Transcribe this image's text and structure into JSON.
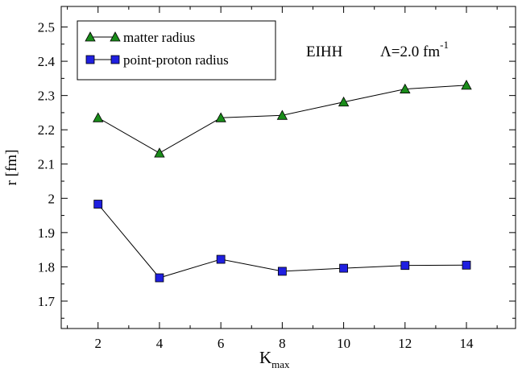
{
  "chart_data": {
    "type": "line",
    "xlabel_main": "K",
    "xlabel_sub": "max",
    "ylabel": "r [fm]",
    "xlim": [
      0.8,
      15.6
    ],
    "ylim": [
      1.62,
      2.56
    ],
    "xticks": [
      2,
      4,
      6,
      8,
      10,
      12,
      14
    ],
    "yticks": [
      1.7,
      1.8,
      1.9,
      2.0,
      2.1,
      2.2,
      2.3,
      2.4,
      2.5
    ],
    "ytick_labels": [
      "1.7",
      "1.8",
      "1.9",
      "2",
      "2.1",
      "2.2",
      "2.3",
      "2.4",
      "2.5"
    ],
    "grid": false,
    "legend_position": "top-left",
    "annotation": {
      "method": "EIHH",
      "lambda_prefix": "Λ=2.0 fm",
      "lambda_sup": "-1"
    },
    "x": [
      2,
      4,
      6,
      8,
      10,
      12,
      14
    ],
    "series": [
      {
        "name": "matter radius",
        "marker": "triangle",
        "color": "#1a8c1a",
        "values": [
          2.235,
          2.132,
          2.235,
          2.242,
          2.281,
          2.319,
          2.33
        ]
      },
      {
        "name": "point-proton radius",
        "marker": "square",
        "color": "#1f1fe0",
        "values": [
          1.983,
          1.768,
          1.822,
          1.787,
          1.796,
          1.804,
          1.805
        ]
      }
    ]
  }
}
